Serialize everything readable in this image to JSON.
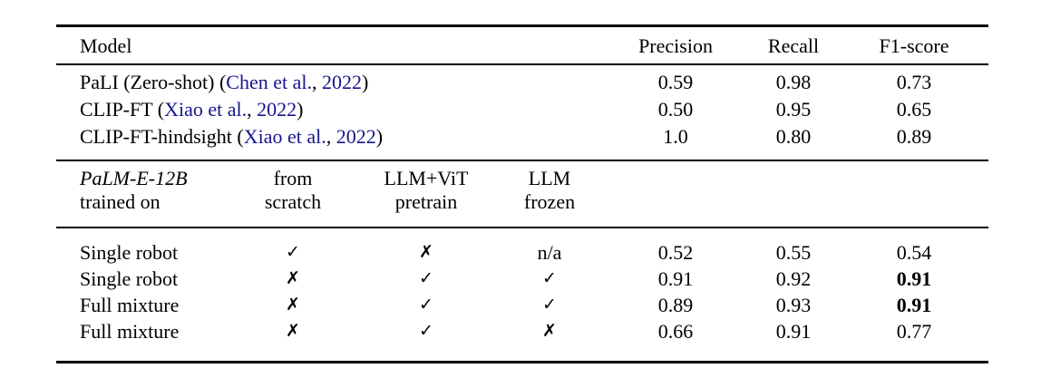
{
  "page": {
    "background": "#ffffff"
  },
  "colors": {
    "text": "#000000",
    "citation_blue": "#15158c",
    "rule": "#000000"
  },
  "glyphs": {
    "check": "✓",
    "cross": "✗"
  },
  "table": {
    "header": {
      "model": "Model",
      "precision": "Precision",
      "recall": "Recall",
      "f1": "F1-score"
    },
    "baseline_rows": [
      {
        "prefix": "PaLI (Zero-shot) (",
        "cite_authors": "Chen et al.",
        "sep": ", ",
        "cite_year": "2022",
        "suffix": ")",
        "precision": "0.59",
        "recall": "0.98",
        "f1": "0.73",
        "f1_bold": false
      },
      {
        "prefix": "CLIP-FT (",
        "cite_authors": "Xiao et al.",
        "sep": ", ",
        "cite_year": "2022",
        "suffix": ")",
        "precision": "0.50",
        "recall": "0.95",
        "f1": "0.65",
        "f1_bold": false
      },
      {
        "prefix": "CLIP-FT-hindsight (",
        "cite_authors": "Xiao et al.",
        "sep": ", ",
        "cite_year": "2022",
        "suffix": ")",
        "precision": "1.0",
        "recall": "0.80",
        "f1": "0.89",
        "f1_bold": false
      }
    ],
    "subheader": {
      "col1_line1": "PaLM-E-12B",
      "col1_line2": "trained on",
      "col2_line1": "from",
      "col2_line2": "scratch",
      "col3_line1": "LLM+ViT",
      "col3_line2": "pretrain",
      "col4_line1": "LLM",
      "col4_line2": "frozen"
    },
    "palme_rows": [
      {
        "name": "Single robot",
        "from_scratch": "✓",
        "llm_vit": "✗",
        "llm_frozen": "n/a",
        "precision": "0.52",
        "recall": "0.55",
        "f1": "0.54",
        "f1_bold": false
      },
      {
        "name": "Single robot",
        "from_scratch": "✗",
        "llm_vit": "✓",
        "llm_frozen": "✓",
        "precision": "0.91",
        "recall": "0.92",
        "f1": "0.91",
        "f1_bold": true
      },
      {
        "name": "Full mixture",
        "from_scratch": "✗",
        "llm_vit": "✓",
        "llm_frozen": "✓",
        "precision": "0.89",
        "recall": "0.93",
        "f1": "0.91",
        "f1_bold": true
      },
      {
        "name": "Full mixture",
        "from_scratch": "✗",
        "llm_vit": "✓",
        "llm_frozen": "✗",
        "precision": "0.66",
        "recall": "0.91",
        "f1": "0.77",
        "f1_bold": false
      }
    ]
  }
}
